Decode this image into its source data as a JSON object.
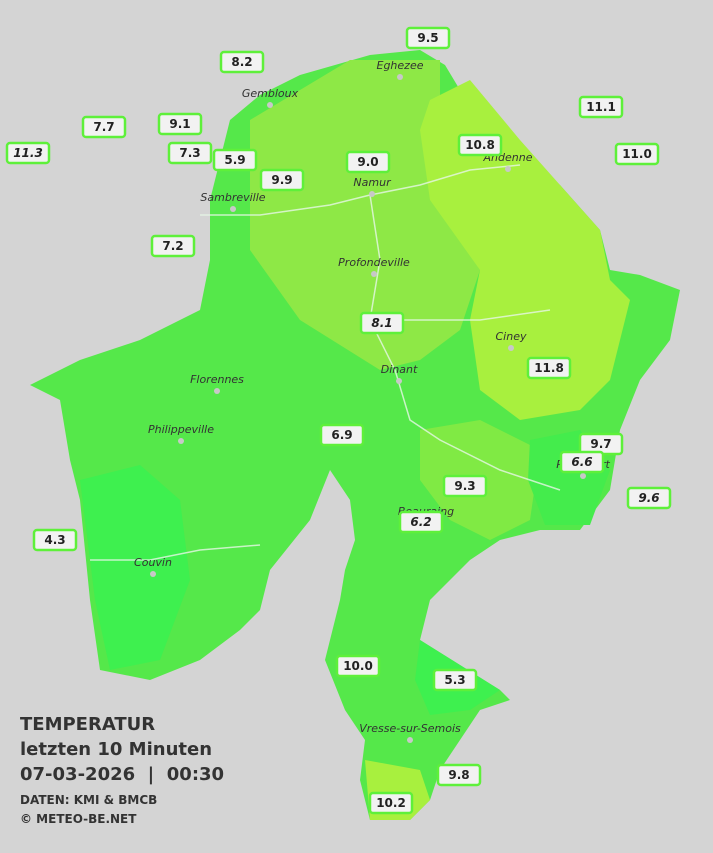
{
  "title": {
    "line1": "TEMPERATUR",
    "line2": "letzten 10 Minuten",
    "line3": "07-03-2026  |  00:30",
    "source": "DATEN: KMI & BMCB",
    "copyright": "© METEO-BE.NET"
  },
  "cities": [
    "Eghezee",
    "Gembloux",
    "Andenne",
    "Namur",
    "Sambreville",
    "Profondeville",
    "Ciney",
    "Dinant",
    "Florennes",
    "Philippeville",
    "Rochefort",
    "Beauraing",
    "Couvin",
    "Vresse-sur-Semois"
  ],
  "stations": [
    "9.5",
    "8.2",
    "11.1",
    "7.7",
    "9.1",
    "11.3",
    "7.3",
    "5.9",
    "9.9",
    "9.0",
    "10.8",
    "11.0",
    "7.2",
    "8.1",
    "11.8",
    "6.9",
    "9.7",
    "6.6",
    "9.6",
    "9.3",
    "6.2",
    "4.3",
    "10.0",
    "5.3",
    "9.8",
    "10.2"
  ]
}
